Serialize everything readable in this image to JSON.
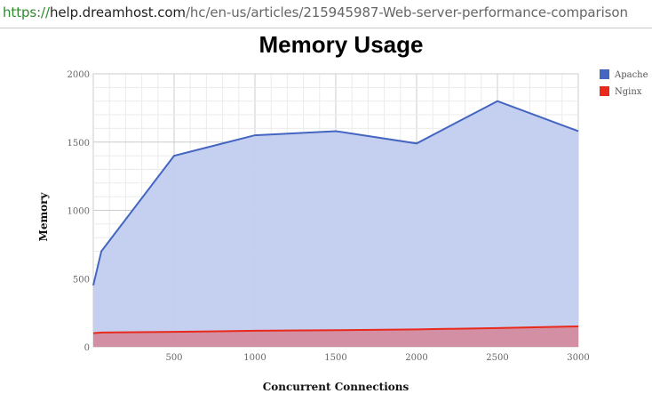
{
  "browser": {
    "url_scheme": "https://",
    "url_host": "help.dreamhost.com",
    "url_path": "/hc/en-us/articles/215945987-Web-server-performance-comparison"
  },
  "chart_data": {
    "type": "area",
    "title": "Memory Usage",
    "xlabel": "Concurrent Connections",
    "ylabel": "Memory",
    "xlim": [
      0,
      3000
    ],
    "ylim": [
      0,
      2000
    ],
    "x_ticks": [
      500,
      1000,
      1500,
      2000,
      2500,
      3000
    ],
    "y_ticks": [
      0,
      500,
      1000,
      1500,
      2000
    ],
    "grid": true,
    "legend_position": "top-right",
    "series": [
      {
        "name": "Apache",
        "color": "#4466c0",
        "fill": "#c2cdf0",
        "x": [
          0,
          50,
          500,
          1000,
          1500,
          2000,
          2500,
          3000
        ],
        "y": [
          450,
          700,
          1400,
          1550,
          1580,
          1490,
          1800,
          1580
        ]
      },
      {
        "name": "Nginx",
        "color": "#e8291c",
        "fill": "#d4879a",
        "x": [
          0,
          50,
          500,
          1000,
          1500,
          2000,
          2500,
          3000
        ],
        "y": [
          100,
          105,
          110,
          118,
          122,
          128,
          138,
          150
        ]
      }
    ]
  }
}
